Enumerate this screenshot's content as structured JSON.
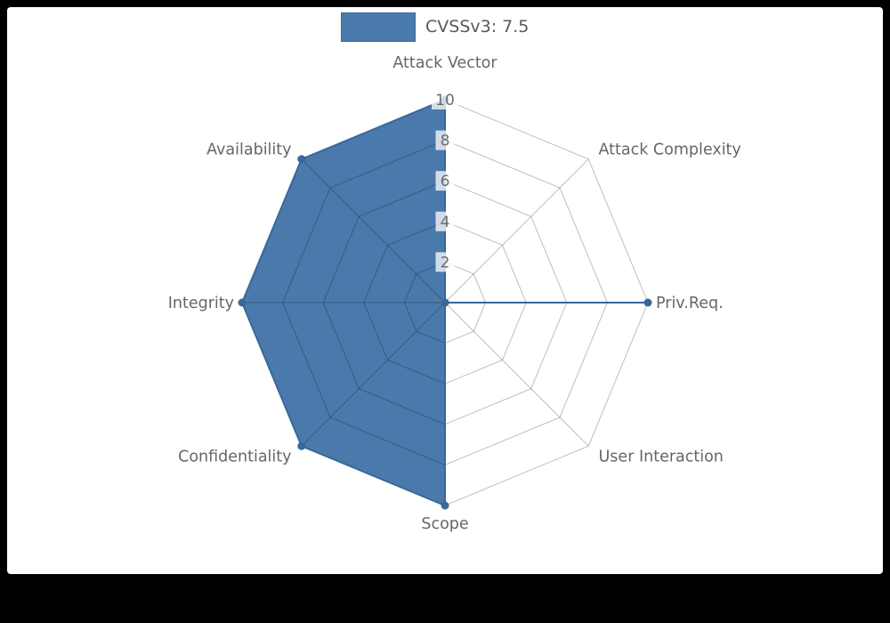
{
  "background": {
    "page": "#000000",
    "panel": "#ffffff"
  },
  "legend": {
    "label": "CVSSv3: 7.5",
    "swatch_color": "#4a7aab",
    "swatch_border": "#38689a"
  },
  "chart_data": {
    "type": "radar",
    "categories": [
      "Attack Vector",
      "Attack Complexity",
      "Priv.Req.",
      "User Interaction",
      "Scope",
      "Confidentiality",
      "Integrity",
      "Availability"
    ],
    "series": [
      {
        "name": "CVSSv3: 7.5",
        "values": [
          10,
          0,
          10,
          0,
          10,
          10,
          10,
          10
        ]
      }
    ],
    "radial_ticks": [
      2,
      4,
      6,
      8,
      10
    ],
    "r_range": [
      0,
      10
    ],
    "grid": true,
    "legend_position": "top",
    "colors": {
      "fill": "#4a7aab",
      "line": "#38689a",
      "grid_line": "rgba(0,0,0,0.25)",
      "tick_text": "#6b6b6b",
      "tick_backdrop": "rgba(255,255,255,0.75)",
      "label_text": "#666666"
    }
  }
}
